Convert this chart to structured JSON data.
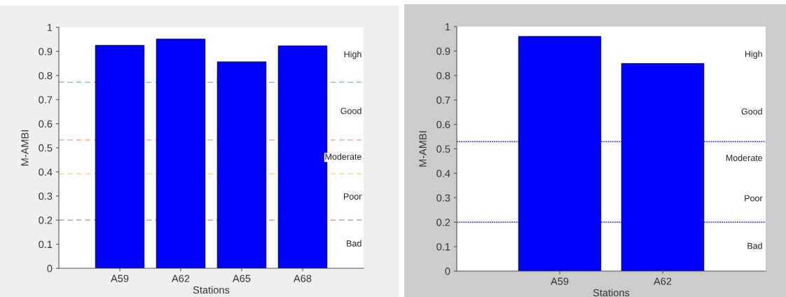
{
  "chart_data": [
    {
      "type": "bar",
      "categories": [
        "A59",
        "A62",
        "A65",
        "A68"
      ],
      "values": [
        0.925,
        0.951,
        0.857,
        0.923
      ],
      "color": "#0000ff",
      "xlabel": "Stations",
      "ylabel": "M-AMBI",
      "ylim": [
        0,
        1
      ],
      "yticks": [
        0,
        0.1,
        0.2,
        0.3,
        0.4,
        0.5,
        0.6,
        0.7,
        0.8,
        0.9,
        1
      ],
      "grid": false,
      "ref_lines": [
        {
          "axis": "y",
          "value": 0.772,
          "color": "#7ab8e0",
          "line_style": "dashed"
        },
        {
          "axis": "y",
          "value": 0.532,
          "color": "#f0a080",
          "line_style": "dashed"
        },
        {
          "axis": "y",
          "value": 0.392,
          "color": "#f5d080",
          "line_style": "dashed"
        },
        {
          "axis": "y",
          "value": 0.2,
          "color": "#b08ac8",
          "line_style": "dashed"
        }
      ],
      "annotations": [
        "High",
        "Good",
        "Moderate",
        "Poor",
        "Bad"
      ]
    },
    {
      "type": "bar",
      "categories": [
        "A59",
        "A62"
      ],
      "values": [
        0.96,
        0.849
      ],
      "color": "#0000ff",
      "xlabel": "Stations",
      "ylabel": "M-AMBI",
      "ylim": [
        0,
        1
      ],
      "yticks": [
        0,
        0.1,
        0.2,
        0.3,
        0.4,
        0.5,
        0.6,
        0.7,
        0.8,
        0.9,
        1
      ],
      "grid": false,
      "ref_lines": [
        {
          "axis": "y",
          "value": 0.53,
          "color": "#0000ff",
          "line_style": "dotted"
        },
        {
          "axis": "y",
          "value": 0.2,
          "color": "#0000ff",
          "line_style": "dotted"
        }
      ],
      "annotations": [
        "High",
        "Good",
        "Moderate",
        "Poor",
        "Bad"
      ]
    }
  ]
}
